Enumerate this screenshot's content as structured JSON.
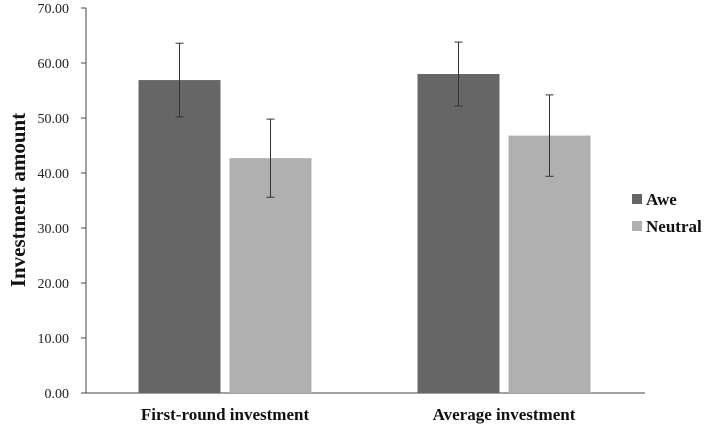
{
  "chart_data": {
    "type": "bar",
    "title": "",
    "xlabel": "",
    "ylabel": "Investment amount",
    "categories": [
      "First-round investment",
      "Average investment"
    ],
    "series": [
      {
        "name": "Awe",
        "values": [
          56.9,
          58.0
        ],
        "error": [
          6.7,
          5.8
        ],
        "color": "#666666"
      },
      {
        "name": "Neutral",
        "values": [
          42.7,
          46.8
        ],
        "error": [
          7.1,
          7.4
        ],
        "color": "#b0b0b0"
      }
    ],
    "ylim": [
      0,
      70
    ],
    "yticks": [
      "0.00",
      "10.00",
      "20.00",
      "30.00",
      "40.00",
      "50.00",
      "60.00",
      "70.00"
    ],
    "grid": false,
    "legend": "right"
  }
}
